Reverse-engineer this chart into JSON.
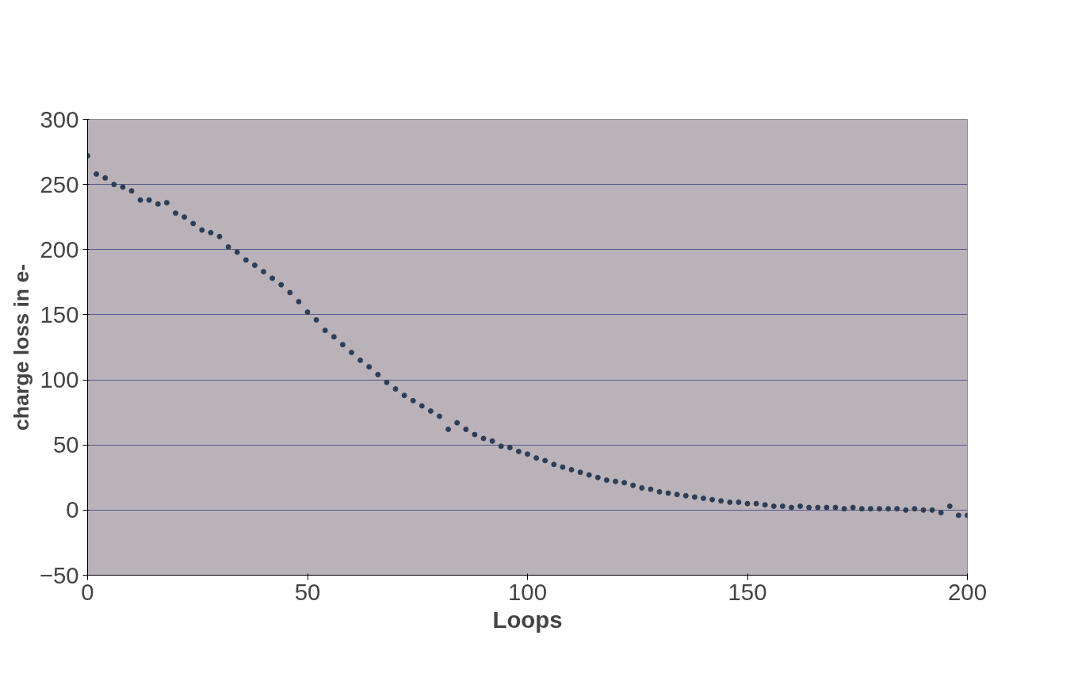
{
  "chart_data": {
    "type": "scatter",
    "xlabel": "Loops",
    "ylabel": "charge loss in e-",
    "x": [
      0,
      2,
      4,
      6,
      8,
      10,
      12,
      14,
      16,
      18,
      20,
      22,
      24,
      26,
      28,
      30,
      32,
      34,
      36,
      38,
      40,
      42,
      44,
      46,
      48,
      50,
      52,
      54,
      56,
      58,
      60,
      62,
      64,
      66,
      68,
      70,
      72,
      74,
      76,
      78,
      80,
      82,
      84,
      86,
      88,
      90,
      92,
      94,
      96,
      98,
      100,
      102,
      104,
      106,
      108,
      110,
      112,
      114,
      116,
      118,
      120,
      122,
      124,
      126,
      128,
      130,
      132,
      134,
      136,
      138,
      140,
      142,
      144,
      146,
      148,
      150,
      152,
      154,
      156,
      158,
      160,
      162,
      164,
      166,
      168,
      170,
      172,
      174,
      176,
      178,
      180,
      182,
      184,
      186,
      188,
      190,
      192,
      194,
      196,
      198,
      200
    ],
    "series": [
      {
        "color": "#2f3e55",
        "values": [
          272,
          258,
          255,
          250,
          248,
          245,
          238,
          238,
          235,
          236,
          228,
          225,
          220,
          215,
          213,
          210,
          202,
          198,
          192,
          188,
          183,
          178,
          173,
          167,
          160,
          152,
          146,
          138,
          133,
          127,
          121,
          115,
          110,
          104,
          98,
          93,
          88,
          84,
          80,
          76,
          72,
          62,
          67,
          62,
          58,
          55,
          53,
          49,
          48,
          45,
          43,
          40,
          38,
          35,
          33,
          31,
          29,
          27,
          25,
          23,
          22,
          21,
          19,
          17,
          16,
          14,
          13,
          12,
          11,
          10,
          9,
          8,
          7,
          6,
          6,
          5,
          5,
          4,
          3,
          3,
          2,
          3,
          2,
          2,
          2,
          2,
          1,
          2,
          1,
          1,
          1,
          1,
          1,
          0,
          1,
          0,
          0,
          -2,
          3,
          -4,
          -4
        ]
      }
    ],
    "marker": "circle",
    "xlim": [
      0,
      200
    ],
    "ylim": [
      -50,
      300
    ],
    "xticks": [
      0,
      50,
      100,
      150,
      200
    ],
    "yticks": [
      -50,
      0,
      50,
      100,
      150,
      200,
      250,
      300
    ],
    "grid": "y"
  }
}
